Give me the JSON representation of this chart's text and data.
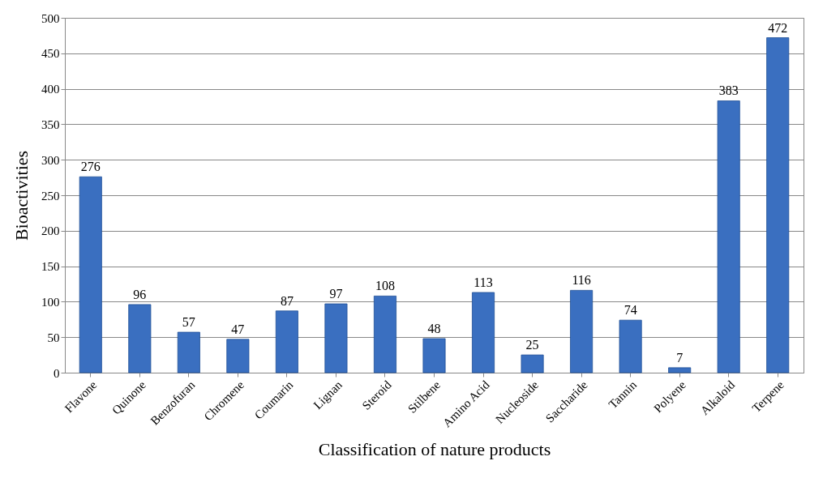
{
  "chart_data": {
    "type": "bar",
    "xlabel": "Classification of nature products",
    "ylabel": "Bioactivities",
    "categories": [
      "Flavone",
      "Quinone",
      "Benzofuran",
      "Chromene",
      "Coumarin",
      "Lignan",
      "Steroid",
      "Stilbene",
      "Amino Acid",
      "Nucleoside",
      "Saccharide",
      "Tannin",
      "Polyene",
      "Alkaloid",
      "Terpene"
    ],
    "values": [
      276,
      96,
      57,
      47,
      87,
      97,
      108,
      48,
      113,
      25,
      116,
      74,
      7,
      383,
      472
    ],
    "color": "#3a6fc0",
    "ylim": [
      0,
      500
    ],
    "yticks": [
      0,
      50,
      100,
      150,
      200,
      250,
      300,
      350,
      400,
      450,
      500
    ],
    "grid": "y",
    "data_labels": true
  }
}
